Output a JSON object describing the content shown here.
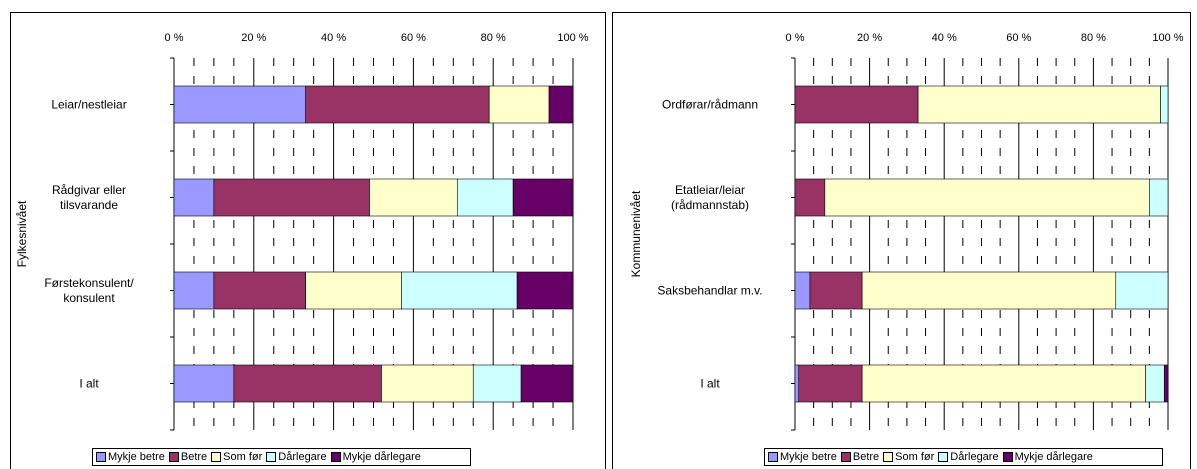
{
  "chart_data": [
    {
      "type": "bar",
      "orientation": "horizontal",
      "stacked": true,
      "ylabel": "Fylkesnivået",
      "categories": [
        "Leiar/nestleiar",
        "Rådgivar eller\ntilsvarande",
        "Førstekonsulent/\nkonsulent",
        "I alt"
      ],
      "series": [
        {
          "name": "Mykje betre",
          "color": "#9999ff",
          "values": [
            33,
            10,
            10,
            15
          ]
        },
        {
          "name": "Betre",
          "color": "#993366",
          "values": [
            46,
            39,
            23,
            37
          ]
        },
        {
          "name": "Som før",
          "color": "#ffffcc",
          "values": [
            15,
            22,
            24,
            23
          ]
        },
        {
          "name": "Dårlegare",
          "color": "#ccffff",
          "values": [
            0,
            14,
            29,
            12
          ]
        },
        {
          "name": "Mykje dårlegare",
          "color": "#660066",
          "values": [
            6,
            15,
            14,
            13
          ]
        }
      ],
      "xlim": [
        0,
        100
      ],
      "xticks": [
        {
          "value": 0,
          "label": "0 %"
        },
        {
          "value": 20,
          "label": "20 %"
        },
        {
          "value": 40,
          "label": "40 %"
        },
        {
          "value": 60,
          "label": "60 %"
        },
        {
          "value": 80,
          "label": "80 %"
        },
        {
          "value": 100,
          "label": "100 %"
        }
      ],
      "grid": true,
      "legend": "bottom"
    },
    {
      "type": "bar",
      "orientation": "horizontal",
      "stacked": true,
      "ylabel": "Kommunenivået",
      "categories": [
        "Ordførar/rådmann",
        "Etatleiar/leiar\n(rådmannstab)",
        "Saksbehandlar m.v.",
        "I alt"
      ],
      "series": [
        {
          "name": "Mykje betre",
          "color": "#9999ff",
          "values": [
            0,
            0,
            4,
            1
          ]
        },
        {
          "name": "Betre",
          "color": "#993366",
          "values": [
            33,
            8,
            14,
            17
          ]
        },
        {
          "name": "Som før",
          "color": "#ffffcc",
          "values": [
            65,
            87,
            68,
            76
          ]
        },
        {
          "name": "Dårlegare",
          "color": "#ccffff",
          "values": [
            2,
            5,
            14,
            5
          ]
        },
        {
          "name": "Mykje dårlegare",
          "color": "#660066",
          "values": [
            0,
            0,
            0,
            1
          ]
        }
      ],
      "xlim": [
        0,
        100
      ],
      "xticks": [
        {
          "value": 0,
          "label": "0 %"
        },
        {
          "value": 20,
          "label": "20 %"
        },
        {
          "value": 40,
          "label": "40 %"
        },
        {
          "value": 60,
          "label": "60 %"
        },
        {
          "value": 80,
          "label": "80 %"
        },
        {
          "value": 100,
          "label": "100 %"
        }
      ],
      "grid": true,
      "legend": "bottom"
    }
  ]
}
